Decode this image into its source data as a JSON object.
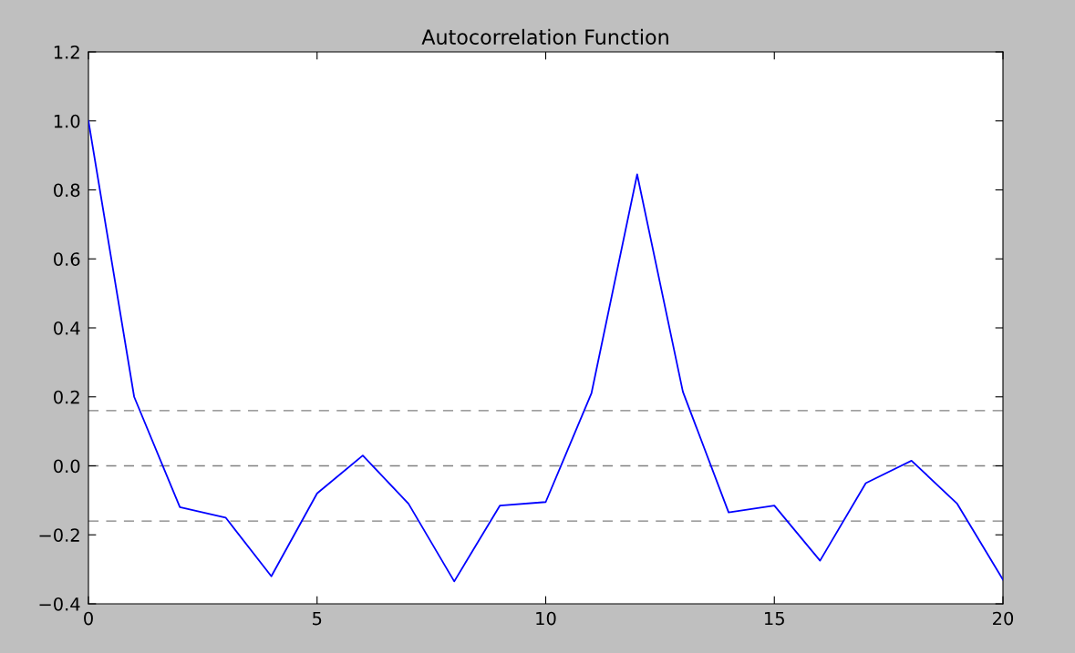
{
  "chart_data": {
    "type": "line",
    "title": "Autocorrelation Function",
    "x": [
      0,
      1,
      2,
      3,
      4,
      5,
      6,
      7,
      8,
      9,
      10,
      11,
      12,
      13,
      14,
      15,
      16,
      17,
      18,
      19,
      20
    ],
    "series": [
      {
        "color": "#0000ff",
        "values": [
          1.0,
          0.2,
          -0.12,
          -0.15,
          -0.32,
          -0.08,
          0.03,
          -0.11,
          -0.335,
          -0.115,
          -0.105,
          0.21,
          0.845,
          0.215,
          -0.135,
          -0.115,
          -0.275,
          -0.05,
          0.015,
          -0.11,
          -0.33
        ]
      }
    ],
    "xlim": [
      0,
      20
    ],
    "xticks": [
      0,
      5,
      10,
      15,
      20
    ],
    "ylim": [
      -0.4,
      1.2
    ],
    "yticks": [
      {
        "value": -0.4,
        "label": "−0.4"
      },
      {
        "value": -0.2,
        "label": "−0.2"
      },
      {
        "value": 0,
        "label": "0.0"
      },
      {
        "value": 0.2,
        "label": "0.2"
      },
      {
        "value": 0.4,
        "label": "0.4"
      },
      {
        "value": 0.6,
        "label": "0.6"
      },
      {
        "value": 0.8,
        "label": "0.8"
      },
      {
        "value": 1.0,
        "label": "1.0"
      },
      {
        "value": 1.2,
        "label": "1.2"
      }
    ],
    "ref_lines": [
      {
        "axis": "y",
        "value": -0.16,
        "color": "#808080",
        "line_style": "dashed"
      },
      {
        "axis": "y",
        "value": 0,
        "color": "#808080",
        "line_style": "dashed"
      },
      {
        "axis": "y",
        "value": 0.16,
        "color": "#808080",
        "line_style": "dashed"
      }
    ],
    "marker": "none",
    "line_style": "solid"
  }
}
